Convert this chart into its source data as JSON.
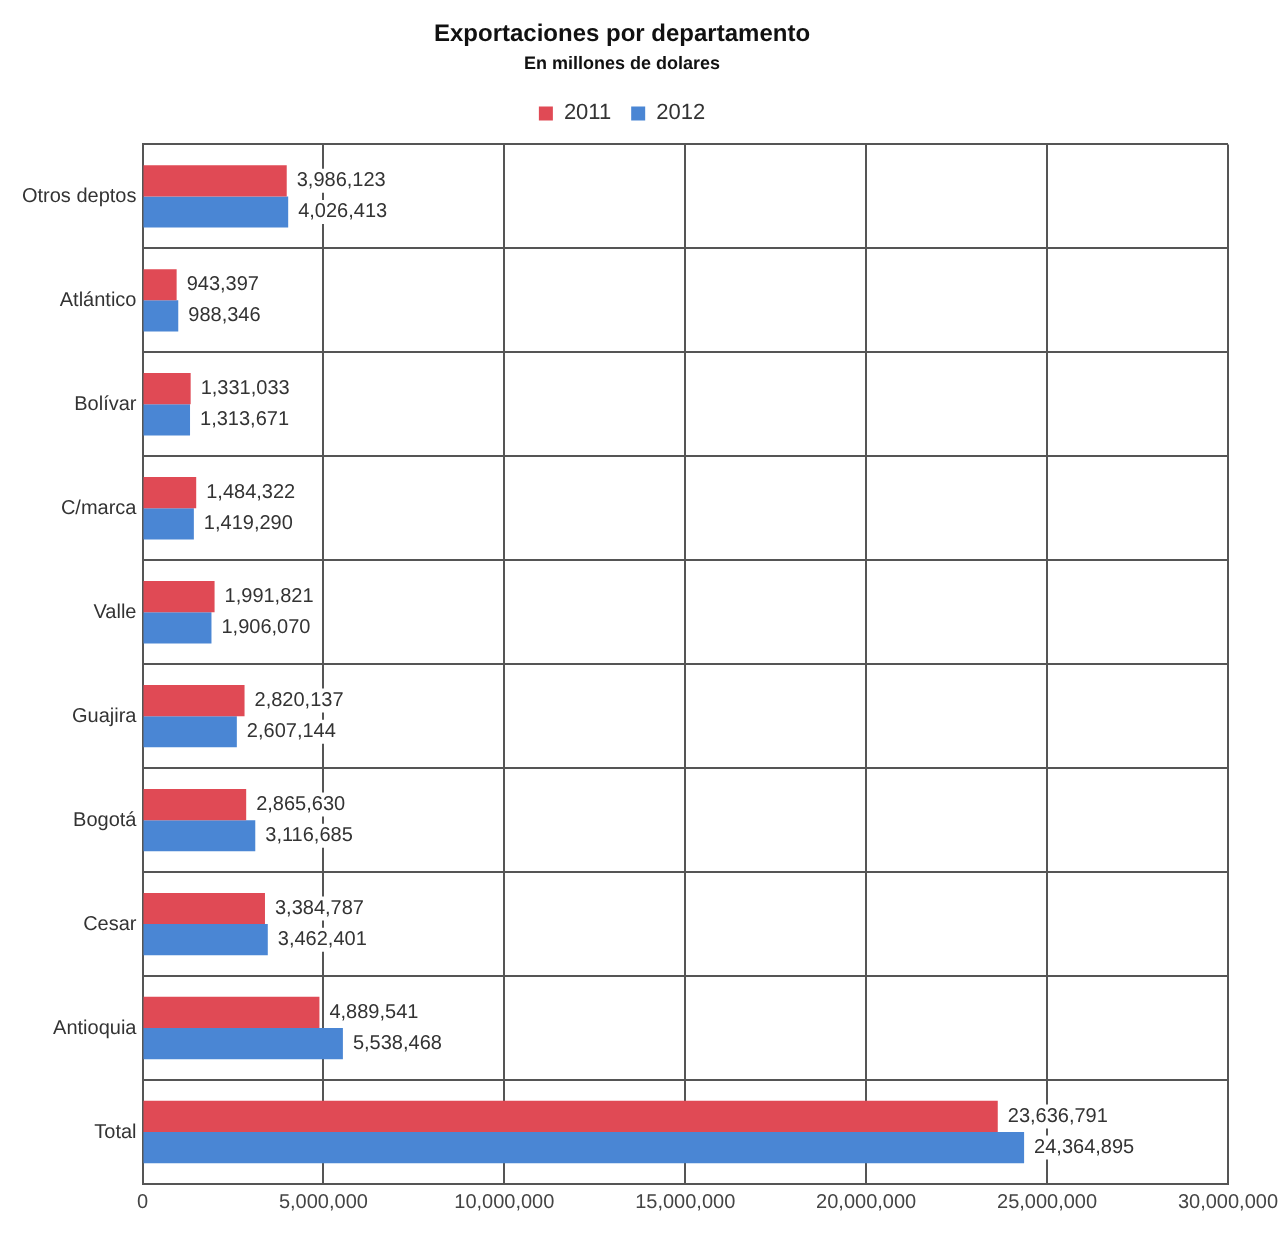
{
  "chart_data": {
    "type": "bar",
    "orientation": "horizontal",
    "title": "Exportaciones por departamento",
    "subtitle": "En millones de dolares",
    "categories": [
      "Otros deptos",
      "Atlántico",
      "Bolívar",
      "C/marca",
      "Valle",
      "Guajira",
      "Bogotá",
      "Cesar",
      "Antioquia",
      "Total"
    ],
    "series": [
      {
        "name": "2011",
        "color": "#e04a55",
        "values": [
          3986123,
          943397,
          1331033,
          1484322,
          1991821,
          2820137,
          2865630,
          3384787,
          4889541,
          23636791
        ],
        "value_labels": [
          "3,986,123",
          "943,397",
          "1,331,033",
          "1,484,322",
          "1,991,821",
          "2,820,137",
          "2,865,630",
          "3,384,787",
          "4,889,541",
          "23,636,791"
        ]
      },
      {
        "name": "2012",
        "color": "#4a86d4",
        "values": [
          4026413,
          988346,
          1313671,
          1419290,
          1906070,
          2607144,
          3116685,
          3462401,
          5538468,
          24364895
        ],
        "value_labels": [
          "4,026,413",
          "988,346",
          "1,313,671",
          "1,419,290",
          "1,906,070",
          "2,607,144",
          "3,116,685",
          "3,462,401",
          "5,538,468",
          "24,364,895"
        ]
      }
    ],
    "xlim": [
      0,
      30000000
    ],
    "xticks": [
      {
        "value": 0,
        "label": "0"
      },
      {
        "value": 5000000,
        "label": "5,000,000"
      },
      {
        "value": 10000000,
        "label": "10,000,000"
      },
      {
        "value": 15000000,
        "label": "15,000,000"
      },
      {
        "value": 20000000,
        "label": "20,000,000"
      },
      {
        "value": 25000000,
        "label": "25,000,000"
      },
      {
        "value": 30000000,
        "label": "30,000,000"
      }
    ],
    "grid": true,
    "legend": "top"
  }
}
